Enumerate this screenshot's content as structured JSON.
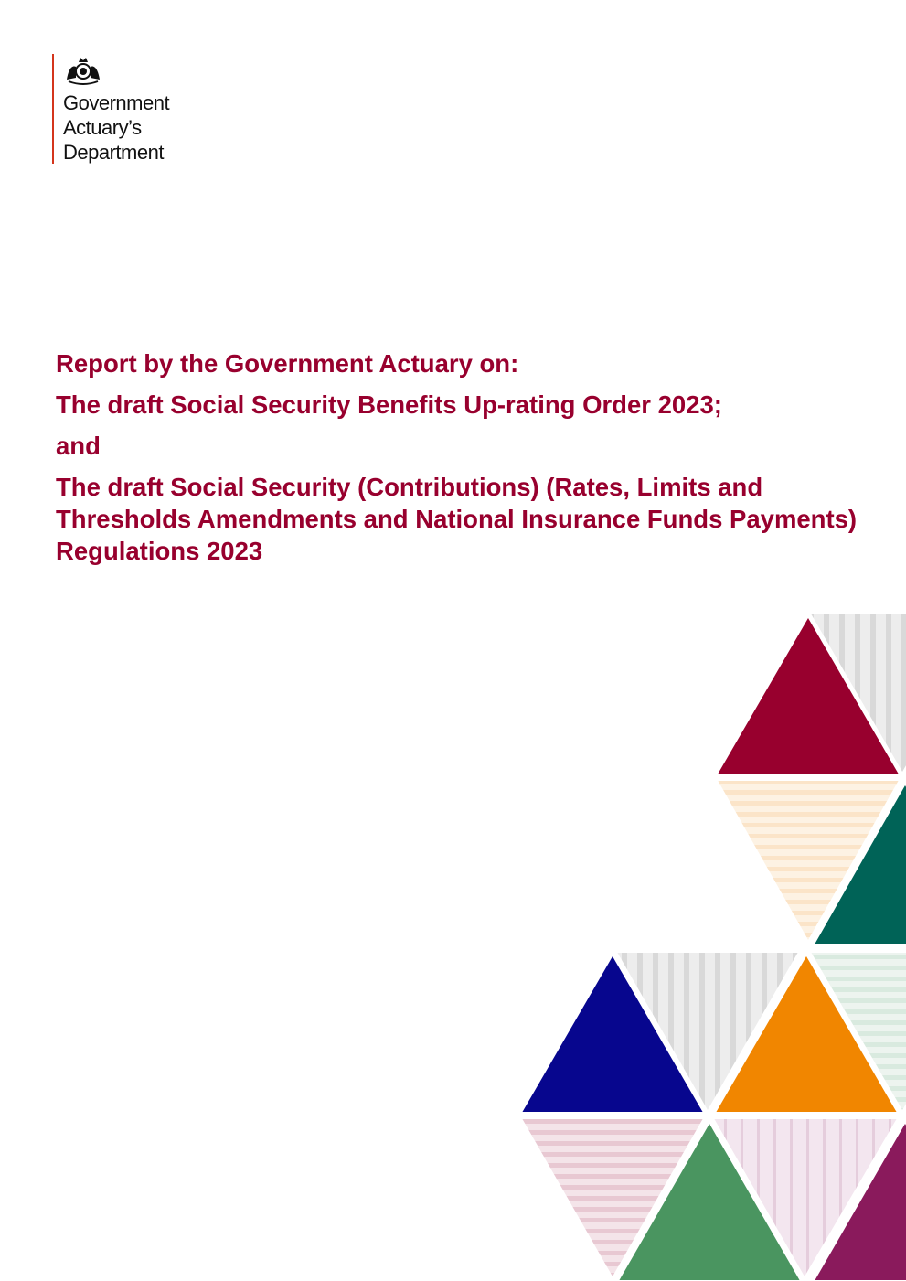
{
  "logo": {
    "lines": [
      "Government",
      "Actuary’s",
      "Department"
    ],
    "accent_color": "#d4351c"
  },
  "title": {
    "color": "#98002e",
    "line1": "Report by the Government Actuary on:",
    "line2": "The draft Social Security Benefits Up-rating Order 2023;",
    "line3": "and",
    "line4": "The draft Social Security (Contributions) (Rates, Limits and Thresholds Amendments and National Insurance Funds Payments) Regulations 2023"
  },
  "decoration": {
    "colors": [
      "#98002e",
      "#006357",
      "#07068e",
      "#f18600",
      "#4a9560",
      "#8a1a5c"
    ]
  }
}
